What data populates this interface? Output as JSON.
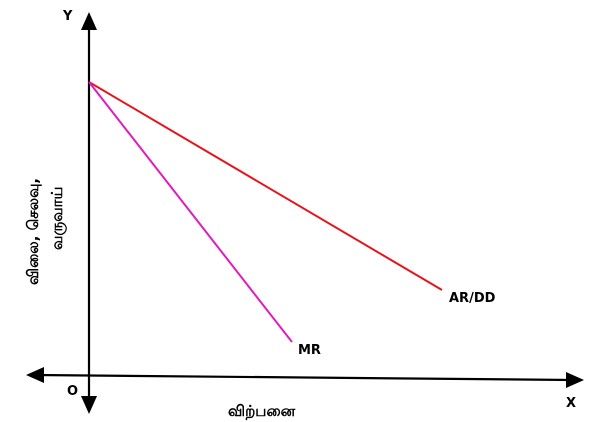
{
  "axes": {
    "y_letter": "Y",
    "x_letter": "X",
    "origin_letter": "O",
    "x_title": "விற்பனை",
    "y_title_line1": "விலை, செலவு,",
    "y_title_line2": "வருவாய்"
  },
  "curves": [
    {
      "label": "AR/DD",
      "color": "#e8141b"
    },
    {
      "label": "MR",
      "color": "#e01bc0"
    }
  ],
  "axis_color": "#000000"
}
